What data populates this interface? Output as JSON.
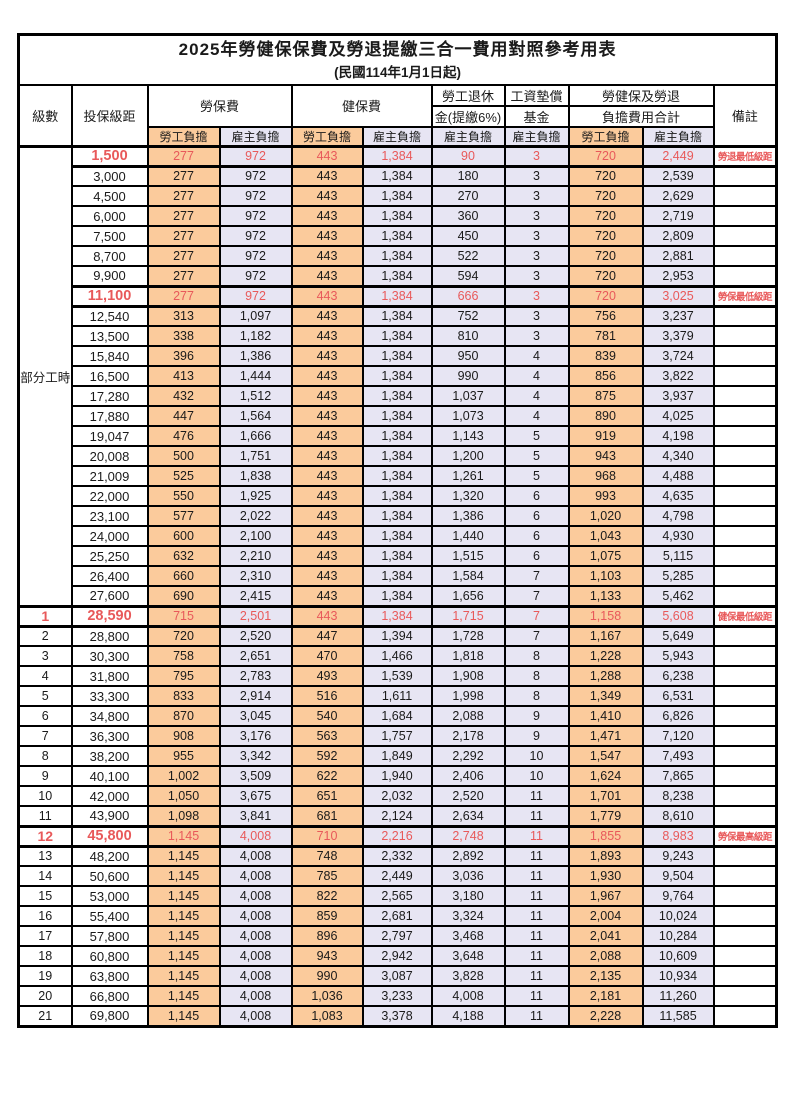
{
  "title": "2025年勞健保保費及勞退提繳三合一費用對照參考用表",
  "subtitle": "(民國114年1月1日起)",
  "colors": {
    "employee_column_bg": "#FBCB9C",
    "employer_column_bg": "#E7E5F3",
    "highlight_text": "#E8595A",
    "border": "#000000"
  },
  "header": {
    "level": "級數",
    "bracket": "投保級距",
    "labor_fee": "勞保費",
    "health_fee": "健保費",
    "pension_line1": "勞工退休",
    "pension_line2": "金(提繳6%)",
    "wage_fund_line1": "工資墊償",
    "wage_fund_line2": "基金",
    "total_line1": "勞健保及勞退",
    "total_line2": "負擔費用合計",
    "remark": "備註",
    "employee_label": "勞工負擔",
    "employer_label": "雇主負擔"
  },
  "table": {
    "part_time_label": "部分工時",
    "value_columns": [
      "labor-employee",
      "labor-employer",
      "health-employee",
      "health-employer",
      "pension-employer",
      "wage-fund-employer",
      "total-employee",
      "total-employer"
    ],
    "rows": [
      {
        "level": null,
        "bracket": "1,500",
        "cells": [
          "277",
          "972",
          "443",
          "1,384",
          "90",
          "3",
          "720",
          "2,449"
        ],
        "remark": "勞退最低級距",
        "hl": true
      },
      {
        "level": null,
        "bracket": "3,000",
        "cells": [
          "277",
          "972",
          "443",
          "1,384",
          "180",
          "3",
          "720",
          "2,539"
        ],
        "remark": "",
        "hl": false
      },
      {
        "level": null,
        "bracket": "4,500",
        "cells": [
          "277",
          "972",
          "443",
          "1,384",
          "270",
          "3",
          "720",
          "2,629"
        ],
        "remark": "",
        "hl": false
      },
      {
        "level": null,
        "bracket": "6,000",
        "cells": [
          "277",
          "972",
          "443",
          "1,384",
          "360",
          "3",
          "720",
          "2,719"
        ],
        "remark": "",
        "hl": false
      },
      {
        "level": null,
        "bracket": "7,500",
        "cells": [
          "277",
          "972",
          "443",
          "1,384",
          "450",
          "3",
          "720",
          "2,809"
        ],
        "remark": "",
        "hl": false
      },
      {
        "level": null,
        "bracket": "8,700",
        "cells": [
          "277",
          "972",
          "443",
          "1,384",
          "522",
          "3",
          "720",
          "2,881"
        ],
        "remark": "",
        "hl": false
      },
      {
        "level": null,
        "bracket": "9,900",
        "cells": [
          "277",
          "972",
          "443",
          "1,384",
          "594",
          "3",
          "720",
          "2,953"
        ],
        "remark": "",
        "hl": false
      },
      {
        "level": null,
        "bracket": "11,100",
        "cells": [
          "277",
          "972",
          "443",
          "1,384",
          "666",
          "3",
          "720",
          "3,025"
        ],
        "remark": "勞保最低級距",
        "hl": true
      },
      {
        "level": null,
        "bracket": "12,540",
        "cells": [
          "313",
          "1,097",
          "443",
          "1,384",
          "752",
          "3",
          "756",
          "3,237"
        ],
        "remark": "",
        "hl": false
      },
      {
        "level": null,
        "bracket": "13,500",
        "cells": [
          "338",
          "1,182",
          "443",
          "1,384",
          "810",
          "3",
          "781",
          "3,379"
        ],
        "remark": "",
        "hl": false
      },
      {
        "level": null,
        "bracket": "15,840",
        "cells": [
          "396",
          "1,386",
          "443",
          "1,384",
          "950",
          "4",
          "839",
          "3,724"
        ],
        "remark": "",
        "hl": false
      },
      {
        "level": null,
        "bracket": "16,500",
        "cells": [
          "413",
          "1,444",
          "443",
          "1,384",
          "990",
          "4",
          "856",
          "3,822"
        ],
        "remark": "",
        "hl": false
      },
      {
        "level": null,
        "bracket": "17,280",
        "cells": [
          "432",
          "1,512",
          "443",
          "1,384",
          "1,037",
          "4",
          "875",
          "3,937"
        ],
        "remark": "",
        "hl": false
      },
      {
        "level": null,
        "bracket": "17,880",
        "cells": [
          "447",
          "1,564",
          "443",
          "1,384",
          "1,073",
          "4",
          "890",
          "4,025"
        ],
        "remark": "",
        "hl": false
      },
      {
        "level": null,
        "bracket": "19,047",
        "cells": [
          "476",
          "1,666",
          "443",
          "1,384",
          "1,143",
          "5",
          "919",
          "4,198"
        ],
        "remark": "",
        "hl": false
      },
      {
        "level": null,
        "bracket": "20,008",
        "cells": [
          "500",
          "1,751",
          "443",
          "1,384",
          "1,200",
          "5",
          "943",
          "4,340"
        ],
        "remark": "",
        "hl": false
      },
      {
        "level": null,
        "bracket": "21,009",
        "cells": [
          "525",
          "1,838",
          "443",
          "1,384",
          "1,261",
          "5",
          "968",
          "4,488"
        ],
        "remark": "",
        "hl": false
      },
      {
        "level": null,
        "bracket": "22,000",
        "cells": [
          "550",
          "1,925",
          "443",
          "1,384",
          "1,320",
          "6",
          "993",
          "4,635"
        ],
        "remark": "",
        "hl": false
      },
      {
        "level": null,
        "bracket": "23,100",
        "cells": [
          "577",
          "2,022",
          "443",
          "1,384",
          "1,386",
          "6",
          "1,020",
          "4,798"
        ],
        "remark": "",
        "hl": false
      },
      {
        "level": null,
        "bracket": "24,000",
        "cells": [
          "600",
          "2,100",
          "443",
          "1,384",
          "1,440",
          "6",
          "1,043",
          "4,930"
        ],
        "remark": "",
        "hl": false
      },
      {
        "level": null,
        "bracket": "25,250",
        "cells": [
          "632",
          "2,210",
          "443",
          "1,384",
          "1,515",
          "6",
          "1,075",
          "5,115"
        ],
        "remark": "",
        "hl": false
      },
      {
        "level": null,
        "bracket": "26,400",
        "cells": [
          "660",
          "2,310",
          "443",
          "1,384",
          "1,584",
          "7",
          "1,103",
          "5,285"
        ],
        "remark": "",
        "hl": false
      },
      {
        "level": null,
        "bracket": "27,600",
        "cells": [
          "690",
          "2,415",
          "443",
          "1,384",
          "1,656",
          "7",
          "1,133",
          "5,462"
        ],
        "remark": "",
        "hl": false
      },
      {
        "level": "1",
        "bracket": "28,590",
        "cells": [
          "715",
          "2,501",
          "443",
          "1,384",
          "1,715",
          "7",
          "1,158",
          "5,608"
        ],
        "remark": "健保最低級距",
        "hl": true
      },
      {
        "level": "2",
        "bracket": "28,800",
        "cells": [
          "720",
          "2,520",
          "447",
          "1,394",
          "1,728",
          "7",
          "1,167",
          "5,649"
        ],
        "remark": "",
        "hl": false
      },
      {
        "level": "3",
        "bracket": "30,300",
        "cells": [
          "758",
          "2,651",
          "470",
          "1,466",
          "1,818",
          "8",
          "1,228",
          "5,943"
        ],
        "remark": "",
        "hl": false
      },
      {
        "level": "4",
        "bracket": "31,800",
        "cells": [
          "795",
          "2,783",
          "493",
          "1,539",
          "1,908",
          "8",
          "1,288",
          "6,238"
        ],
        "remark": "",
        "hl": false
      },
      {
        "level": "5",
        "bracket": "33,300",
        "cells": [
          "833",
          "2,914",
          "516",
          "1,611",
          "1,998",
          "8",
          "1,349",
          "6,531"
        ],
        "remark": "",
        "hl": false
      },
      {
        "level": "6",
        "bracket": "34,800",
        "cells": [
          "870",
          "3,045",
          "540",
          "1,684",
          "2,088",
          "9",
          "1,410",
          "6,826"
        ],
        "remark": "",
        "hl": false
      },
      {
        "level": "7",
        "bracket": "36,300",
        "cells": [
          "908",
          "3,176",
          "563",
          "1,757",
          "2,178",
          "9",
          "1,471",
          "7,120"
        ],
        "remark": "",
        "hl": false
      },
      {
        "level": "8",
        "bracket": "38,200",
        "cells": [
          "955",
          "3,342",
          "592",
          "1,849",
          "2,292",
          "10",
          "1,547",
          "7,493"
        ],
        "remark": "",
        "hl": false
      },
      {
        "level": "9",
        "bracket": "40,100",
        "cells": [
          "1,002",
          "3,509",
          "622",
          "1,940",
          "2,406",
          "10",
          "1,624",
          "7,865"
        ],
        "remark": "",
        "hl": false
      },
      {
        "level": "10",
        "bracket": "42,000",
        "cells": [
          "1,050",
          "3,675",
          "651",
          "2,032",
          "2,520",
          "11",
          "1,701",
          "8,238"
        ],
        "remark": "",
        "hl": false
      },
      {
        "level": "11",
        "bracket": "43,900",
        "cells": [
          "1,098",
          "3,841",
          "681",
          "2,124",
          "2,634",
          "11",
          "1,779",
          "8,610"
        ],
        "remark": "",
        "hl": false
      },
      {
        "level": "12",
        "bracket": "45,800",
        "cells": [
          "1,145",
          "4,008",
          "710",
          "2,216",
          "2,748",
          "11",
          "1,855",
          "8,983"
        ],
        "remark": "勞保最高級距",
        "hl": true
      },
      {
        "level": "13",
        "bracket": "48,200",
        "cells": [
          "1,145",
          "4,008",
          "748",
          "2,332",
          "2,892",
          "11",
          "1,893",
          "9,243"
        ],
        "remark": "",
        "hl": false
      },
      {
        "level": "14",
        "bracket": "50,600",
        "cells": [
          "1,145",
          "4,008",
          "785",
          "2,449",
          "3,036",
          "11",
          "1,930",
          "9,504"
        ],
        "remark": "",
        "hl": false
      },
      {
        "level": "15",
        "bracket": "53,000",
        "cells": [
          "1,145",
          "4,008",
          "822",
          "2,565",
          "3,180",
          "11",
          "1,967",
          "9,764"
        ],
        "remark": "",
        "hl": false
      },
      {
        "level": "16",
        "bracket": "55,400",
        "cells": [
          "1,145",
          "4,008",
          "859",
          "2,681",
          "3,324",
          "11",
          "2,004",
          "10,024"
        ],
        "remark": "",
        "hl": false
      },
      {
        "level": "17",
        "bracket": "57,800",
        "cells": [
          "1,145",
          "4,008",
          "896",
          "2,797",
          "3,468",
          "11",
          "2,041",
          "10,284"
        ],
        "remark": "",
        "hl": false
      },
      {
        "level": "18",
        "bracket": "60,800",
        "cells": [
          "1,145",
          "4,008",
          "943",
          "2,942",
          "3,648",
          "11",
          "2,088",
          "10,609"
        ],
        "remark": "",
        "hl": false
      },
      {
        "level": "19",
        "bracket": "63,800",
        "cells": [
          "1,145",
          "4,008",
          "990",
          "3,087",
          "3,828",
          "11",
          "2,135",
          "10,934"
        ],
        "remark": "",
        "hl": false
      },
      {
        "level": "20",
        "bracket": "66,800",
        "cells": [
          "1,145",
          "4,008",
          "1,036",
          "3,233",
          "4,008",
          "11",
          "2,181",
          "11,260"
        ],
        "remark": "",
        "hl": false
      },
      {
        "level": "21",
        "bracket": "69,800",
        "cells": [
          "1,145",
          "4,008",
          "1,083",
          "3,378",
          "4,188",
          "11",
          "2,228",
          "11,585"
        ],
        "remark": "",
        "hl": false
      }
    ]
  }
}
